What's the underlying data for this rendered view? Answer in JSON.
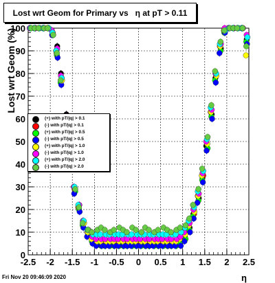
{
  "title": "Lost wrt Geom for Primary vs   η at pT > 0.11",
  "timestamp": "Fri Nov 20 09:46:09 2020",
  "colors": {
    "black": "#000000",
    "red": "#ff0000",
    "green": "#00ff00",
    "blue": "#0000ff",
    "yellow": "#ffff00",
    "magenta": "#ff00ff",
    "cyan": "#00ffff",
    "lightgreen": "#66cc44"
  },
  "chart_data": {
    "type": "scatter",
    "xlabel": "η",
    "ylabel": "Lost wrt Geom (%)",
    "xlim": [
      -2.5,
      2.5
    ],
    "ylim": [
      0,
      100
    ],
    "xticks": [
      "-2.5",
      "-2",
      "-1.5",
      "-1",
      "-0.5",
      "0",
      "0.5",
      "1",
      "1.5",
      "2",
      "2.5"
    ],
    "yticks": [
      "0",
      "10",
      "20",
      "30",
      "40",
      "50",
      "60",
      "70",
      "80",
      "90",
      "100"
    ],
    "grid": true,
    "legend_position": "middle-left",
    "x": [
      -2.45,
      -2.35,
      -2.25,
      -2.15,
      -2.05,
      -1.95,
      -1.85,
      -1.75,
      -1.65,
      -1.55,
      -1.45,
      -1.35,
      -1.25,
      -1.15,
      -1.05,
      -0.95,
      -0.85,
      -0.75,
      -0.65,
      -0.55,
      -0.45,
      -0.35,
      -0.25,
      -0.15,
      -0.05,
      0.05,
      0.15,
      0.25,
      0.35,
      0.45,
      0.55,
      0.65,
      0.75,
      0.85,
      0.95,
      1.05,
      1.15,
      1.25,
      1.35,
      1.45,
      1.55,
      1.65,
      1.75,
      1.85,
      1.95,
      2.05,
      2.15,
      2.25,
      2.35,
      2.45
    ],
    "series": [
      {
        "name": "(+) with pT/|q| > 0.1",
        "color": "black",
        "values": [
          100,
          100,
          100,
          100,
          100,
          99,
          92,
          80,
          62,
          42,
          30,
          22,
          15,
          10,
          7,
          6,
          5,
          5,
          5,
          5,
          5,
          5,
          5,
          5,
          5,
          5,
          5,
          5,
          5,
          5,
          5,
          5,
          5,
          5,
          6,
          8,
          12,
          18,
          25,
          34,
          48,
          62,
          78,
          91,
          99,
          100,
          100,
          100,
          100,
          95
        ]
      },
      {
        "name": "(-) with pT/|q| > 0.1",
        "color": "red",
        "values": [
          100,
          100,
          100,
          100,
          100,
          98,
          90,
          78,
          60,
          41,
          29,
          21,
          14,
          10,
          7,
          6,
          5,
          5,
          5,
          5,
          5,
          5,
          5,
          5,
          5,
          5,
          5,
          5,
          5,
          5,
          5,
          5,
          5,
          5,
          6,
          8,
          12,
          18,
          26,
          35,
          49,
          63,
          79,
          92,
          99,
          100,
          100,
          100,
          100,
          96
        ]
      },
      {
        "name": "(+) with pT/|q| > 0.5",
        "color": "green",
        "values": [
          100,
          100,
          100,
          100,
          100,
          97,
          88,
          76,
          58,
          40,
          28,
          20,
          13,
          9,
          6,
          5,
          4,
          4,
          4,
          4,
          4,
          4,
          4,
          4,
          4,
          4,
          4,
          4,
          4,
          4,
          4,
          4,
          4,
          4,
          5,
          7,
          11,
          17,
          24,
          33,
          47,
          61,
          77,
          90,
          98,
          100,
          100,
          100,
          100,
          94
        ]
      },
      {
        "name": "(-) with pT/|q| > 0.5",
        "color": "blue",
        "values": [
          100,
          100,
          100,
          100,
          100,
          97,
          87,
          75,
          57,
          39,
          27,
          19,
          12,
          8,
          5,
          4,
          4,
          4,
          4,
          4,
          4,
          4,
          4,
          4,
          4,
          4,
          4,
          4,
          4,
          4,
          4,
          4,
          4,
          4,
          4,
          6,
          10,
          16,
          23,
          32,
          46,
          60,
          76,
          89,
          98,
          100,
          100,
          100,
          100,
          93
        ]
      },
      {
        "name": "(+) with pT/|q| > 1.0",
        "color": "yellow",
        "values": [
          100,
          100,
          100,
          100,
          100,
          98,
          89,
          77,
          59,
          41,
          29,
          21,
          14,
          10,
          7,
          6,
          6,
          6,
          6,
          6,
          6,
          6,
          6,
          6,
          6,
          6,
          6,
          6,
          6,
          6,
          6,
          6,
          6,
          6,
          7,
          9,
          13,
          19,
          26,
          35,
          49,
          63,
          79,
          92,
          99,
          100,
          100,
          100,
          100,
          88
        ]
      },
      {
        "name": "(-) with pT/|q| > 1.0",
        "color": "magenta",
        "values": [
          100,
          100,
          100,
          100,
          100,
          99,
          91,
          79,
          61,
          42,
          30,
          22,
          15,
          11,
          8,
          7,
          7,
          7,
          7,
          7,
          7,
          7,
          7,
          7,
          7,
          7,
          7,
          7,
          7,
          7,
          7,
          7,
          7,
          7,
          8,
          10,
          14,
          20,
          27,
          36,
          50,
          64,
          80,
          93,
          100,
          100,
          100,
          100,
          100,
          97
        ]
      },
      {
        "name": "(+) with pT/|q| > 2.0",
        "color": "cyan",
        "values": [
          100,
          100,
          100,
          100,
          100,
          98,
          90,
          78,
          60,
          41,
          30,
          22,
          15,
          11,
          9,
          9,
          9,
          9,
          9,
          9,
          9,
          9,
          9,
          9,
          9,
          9,
          9,
          9,
          9,
          9,
          9,
          9,
          9,
          9,
          10,
          12,
          15,
          21,
          28,
          37,
          51,
          65,
          80,
          93,
          99,
          100,
          100,
          100,
          100,
          96
        ]
      },
      {
        "name": "(-) with pT/|q| > 2.0",
        "color": "lightgreen",
        "values": [
          100,
          100,
          100,
          100,
          100,
          97,
          89,
          77,
          59,
          40,
          29,
          21,
          14,
          11,
          10,
          11,
          12,
          11,
          10,
          11,
          12,
          11,
          10,
          12,
          11,
          10,
          12,
          11,
          10,
          11,
          12,
          11,
          10,
          11,
          12,
          13,
          16,
          22,
          29,
          38,
          52,
          66,
          81,
          94,
          99,
          100,
          100,
          100,
          100,
          92
        ]
      }
    ]
  }
}
